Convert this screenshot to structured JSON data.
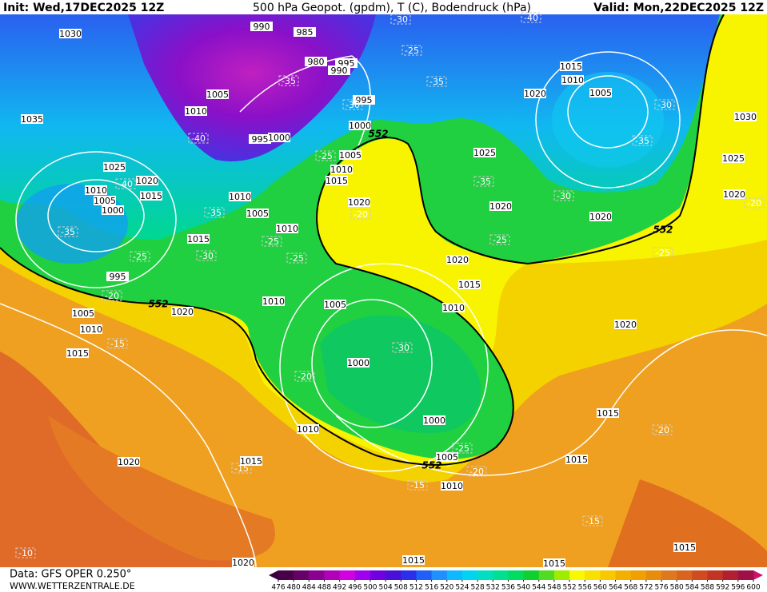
{
  "header": {
    "init": "Init: Wed,17DEC2025 12Z",
    "title": "500 hPa Geopot. (gpdm), T (C), Bodendruck (hPa)",
    "valid": "Valid: Mon,22DEC2025 12Z"
  },
  "footer": {
    "source": "Data: GFS OPER 0.250°",
    "site": "WWW.WETTERZENTRALE.DE"
  },
  "colorbar": {
    "ticks": [
      476,
      480,
      484,
      488,
      492,
      496,
      500,
      504,
      508,
      512,
      516,
      520,
      524,
      528,
      532,
      536,
      540,
      544,
      548,
      552,
      556,
      560,
      564,
      568,
      572,
      576,
      580,
      584,
      588,
      592,
      596,
      600
    ],
    "colors": [
      "#4a0048",
      "#650068",
      "#8a0090",
      "#b000b8",
      "#d000e0",
      "#a000f0",
      "#7000e0",
      "#4a10d8",
      "#2a30e8",
      "#2060f8",
      "#2090ff",
      "#10b8ff",
      "#00d4f0",
      "#00e0c0",
      "#00e090",
      "#00dc60",
      "#10d030",
      "#50dc20",
      "#a0ec00",
      "#f8f800",
      "#f8e000",
      "#f8c800",
      "#f4b000",
      "#f0a000",
      "#e88c10",
      "#e07820",
      "#d86420",
      "#d04c20",
      "#c43424",
      "#b02030",
      "#a01048"
    ]
  },
  "map": {
    "pressure_labels": [
      "1030",
      "990",
      "985",
      "980",
      "995",
      "990",
      "1035",
      "1005",
      "1010",
      "995",
      "1000",
      "995",
      "1000",
      "1005",
      "1010",
      "1015",
      "1025",
      "1020",
      "1010",
      "1005",
      "1015",
      "1000",
      "1010",
      "1005",
      "1020",
      "1025",
      "1015",
      "1010",
      "1020",
      "1005",
      "1030",
      "1025",
      "1020",
      "1020",
      "1010",
      "1015",
      "995",
      "1020",
      "1015",
      "1010",
      "1005",
      "1010",
      "1020",
      "1005",
      "1010",
      "1015",
      "1020",
      "1000",
      "1000",
      "1010",
      "1015",
      "1005",
      "1015",
      "1020",
      "1010",
      "1015",
      "1015",
      "1015",
      "1015",
      "1020",
      "1020"
    ],
    "temperature_labels": [
      "-30",
      "-40",
      "-25",
      "-35",
      "-40",
      "-35",
      "-30",
      "-25",
      "-40",
      "-35",
      "-20",
      "-35",
      "-30",
      "-25",
      "-35",
      "-30",
      "-20",
      "-35",
      "-25",
      "-30",
      "-25",
      "-25",
      "-20",
      "-15",
      "-30",
      "-20",
      "-25",
      "-20",
      "-15",
      "-15",
      "-20",
      "-15",
      "-10",
      "-25"
    ],
    "contour_labels": [
      "552",
      "552",
      "552",
      "552"
    ]
  }
}
